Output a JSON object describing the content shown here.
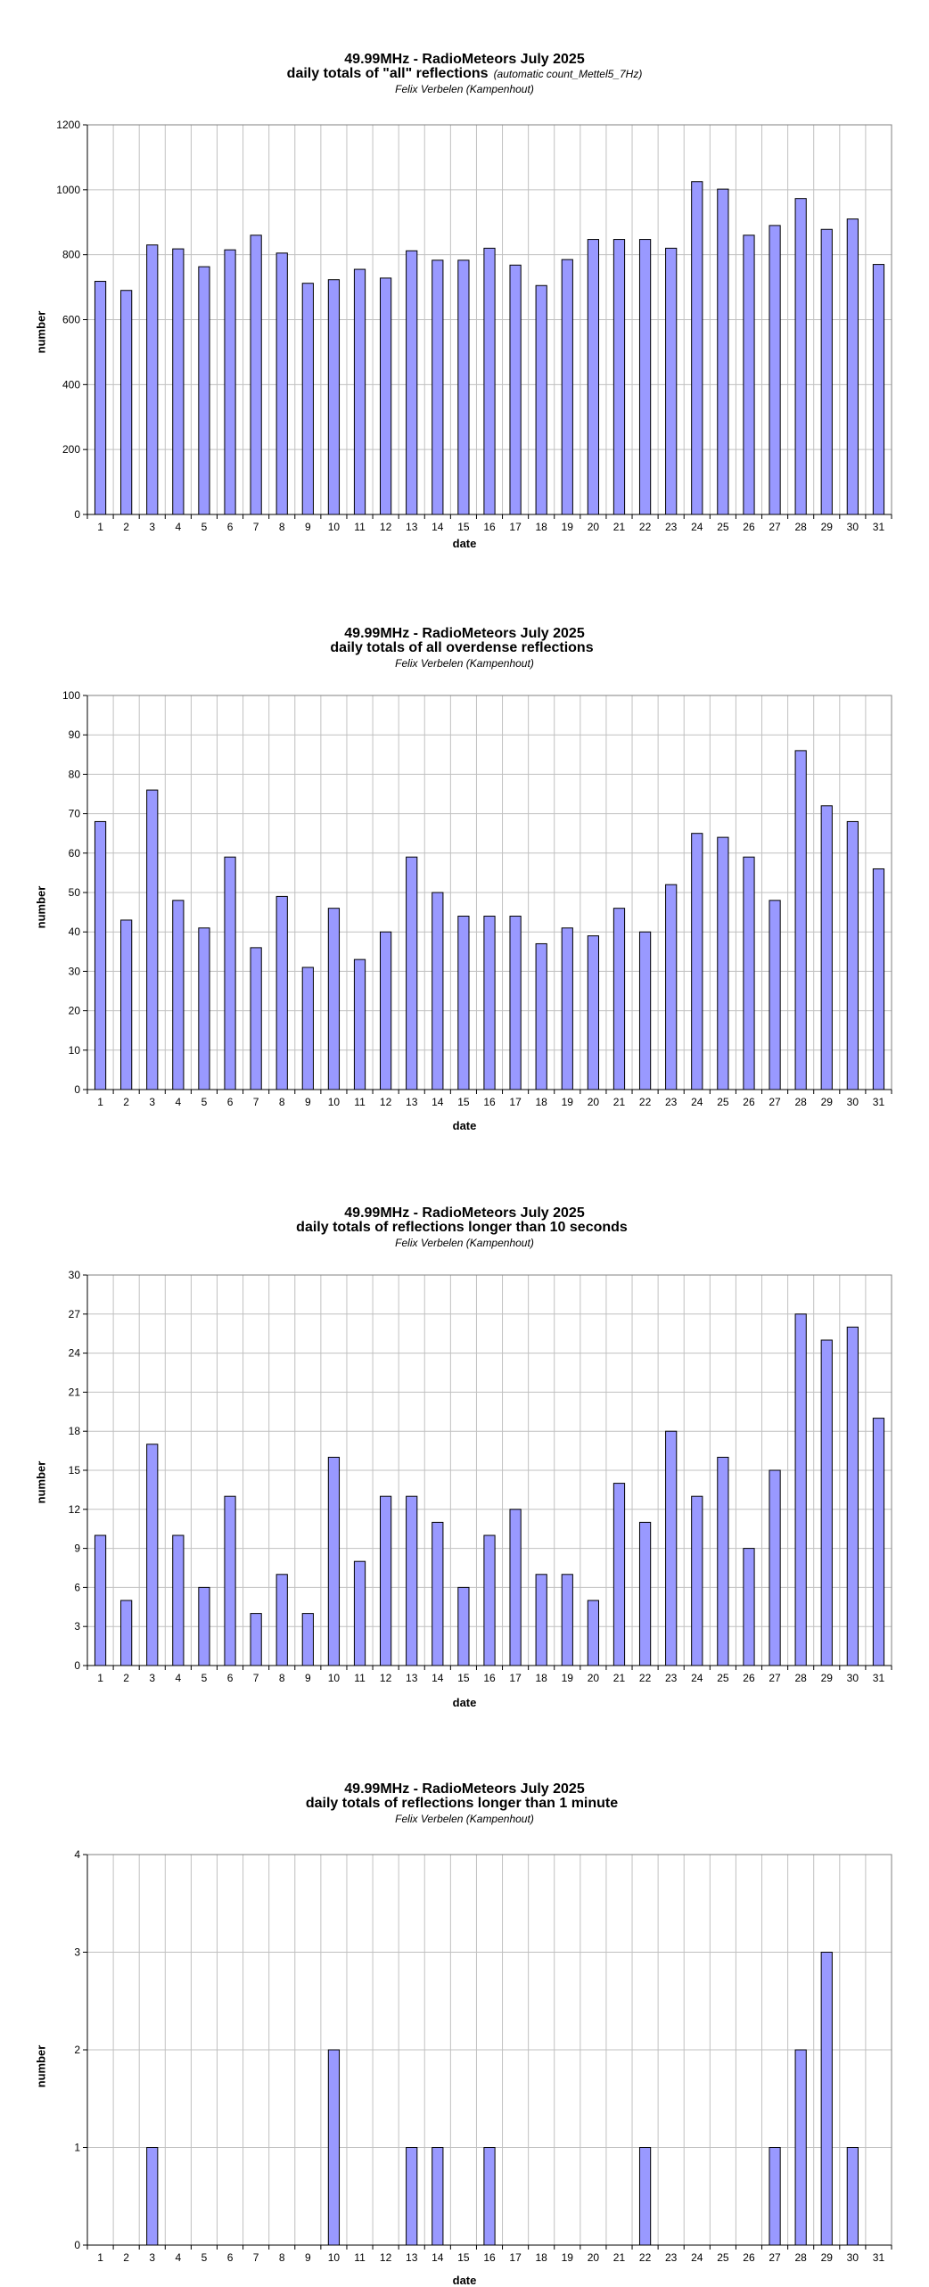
{
  "chart_data": [
    {
      "type": "bar",
      "title": "49.99MHz - RadioMeteors July 2025",
      "subtitle": "daily totals of \"all\" reflections",
      "subtitle_note": "(automatic count_Mettel5_7Hz)",
      "author": "Felix Verbelen (Kampenhout)",
      "xlabel": "date",
      "ylabel": "number",
      "ylim": [
        0,
        1200
      ],
      "yticks": [
        0,
        200,
        400,
        600,
        800,
        1000,
        1200
      ],
      "grid": true,
      "bar_color": "#9999ff",
      "categories": [
        "1",
        "2",
        "3",
        "4",
        "5",
        "6",
        "7",
        "8",
        "9",
        "10",
        "11",
        "12",
        "13",
        "14",
        "15",
        "16",
        "17",
        "18",
        "19",
        "20",
        "21",
        "22",
        "23",
        "24",
        "25",
        "26",
        "27",
        "28",
        "29",
        "30",
        "31"
      ],
      "values": [
        718,
        690,
        830,
        818,
        763,
        815,
        860,
        805,
        712,
        723,
        755,
        728,
        812,
        783,
        783,
        820,
        768,
        705,
        785,
        847,
        847,
        847,
        820,
        1025,
        1002,
        860,
        890,
        973,
        878,
        910,
        770
      ]
    },
    {
      "type": "bar",
      "title": "49.99MHz - RadioMeteors July 2025",
      "subtitle": "daily totals of all overdense reflections",
      "subtitle_note": "",
      "author": "Felix Verbelen (Kampenhout)",
      "xlabel": "date",
      "ylabel": "number",
      "ylim": [
        0,
        100
      ],
      "yticks": [
        0,
        10,
        20,
        30,
        40,
        50,
        60,
        70,
        80,
        90,
        100
      ],
      "grid": true,
      "bar_color": "#9999ff",
      "categories": [
        "1",
        "2",
        "3",
        "4",
        "5",
        "6",
        "7",
        "8",
        "9",
        "10",
        "11",
        "12",
        "13",
        "14",
        "15",
        "16",
        "17",
        "18",
        "19",
        "20",
        "21",
        "22",
        "23",
        "24",
        "25",
        "26",
        "27",
        "28",
        "29",
        "30",
        "31"
      ],
      "values": [
        68,
        43,
        76,
        48,
        41,
        59,
        36,
        49,
        31,
        46,
        33,
        40,
        59,
        50,
        44,
        44,
        44,
        37,
        41,
        39,
        46,
        40,
        52,
        65,
        64,
        59,
        48,
        86,
        72,
        68,
        56
      ]
    },
    {
      "type": "bar",
      "title": "49.99MHz - RadioMeteors July 2025",
      "subtitle": "daily totals of reflections longer than 10 seconds",
      "subtitle_note": "",
      "author": "Felix Verbelen (Kampenhout)",
      "xlabel": "date",
      "ylabel": "number",
      "ylim": [
        0,
        30
      ],
      "yticks": [
        0,
        3,
        6,
        9,
        12,
        15,
        18,
        21,
        24,
        27,
        30
      ],
      "grid": true,
      "bar_color": "#9999ff",
      "categories": [
        "1",
        "2",
        "3",
        "4",
        "5",
        "6",
        "7",
        "8",
        "9",
        "10",
        "11",
        "12",
        "13",
        "14",
        "15",
        "16",
        "17",
        "18",
        "19",
        "20",
        "21",
        "22",
        "23",
        "24",
        "25",
        "26",
        "27",
        "28",
        "29",
        "30",
        "31"
      ],
      "values": [
        10,
        5,
        17,
        10,
        6,
        13,
        4,
        7,
        4,
        16,
        8,
        13,
        13,
        11,
        6,
        10,
        12,
        7,
        7,
        5,
        14,
        11,
        18,
        13,
        16,
        9,
        15,
        27,
        25,
        26,
        19
      ]
    },
    {
      "type": "bar",
      "title": "49.99MHz - RadioMeteors July 2025",
      "subtitle": "daily totals of reflections longer than 1 minute",
      "subtitle_note": "",
      "author": "Felix Verbelen (Kampenhout)",
      "xlabel": "date",
      "ylabel": "number",
      "ylim": [
        0,
        4
      ],
      "yticks": [
        0,
        1,
        2,
        3,
        4
      ],
      "grid": true,
      "bar_color": "#9999ff",
      "categories": [
        "1",
        "2",
        "3",
        "4",
        "5",
        "6",
        "7",
        "8",
        "9",
        "10",
        "11",
        "12",
        "13",
        "14",
        "15",
        "16",
        "17",
        "18",
        "19",
        "20",
        "21",
        "22",
        "23",
        "24",
        "25",
        "26",
        "27",
        "28",
        "29",
        "30",
        "31"
      ],
      "values": [
        0,
        0,
        1,
        0,
        0,
        0,
        0,
        0,
        0,
        2,
        0,
        0,
        1,
        1,
        0,
        1,
        0,
        0,
        0,
        0,
        0,
        1,
        0,
        0,
        0,
        0,
        1,
        2,
        3,
        1,
        0
      ]
    }
  ]
}
